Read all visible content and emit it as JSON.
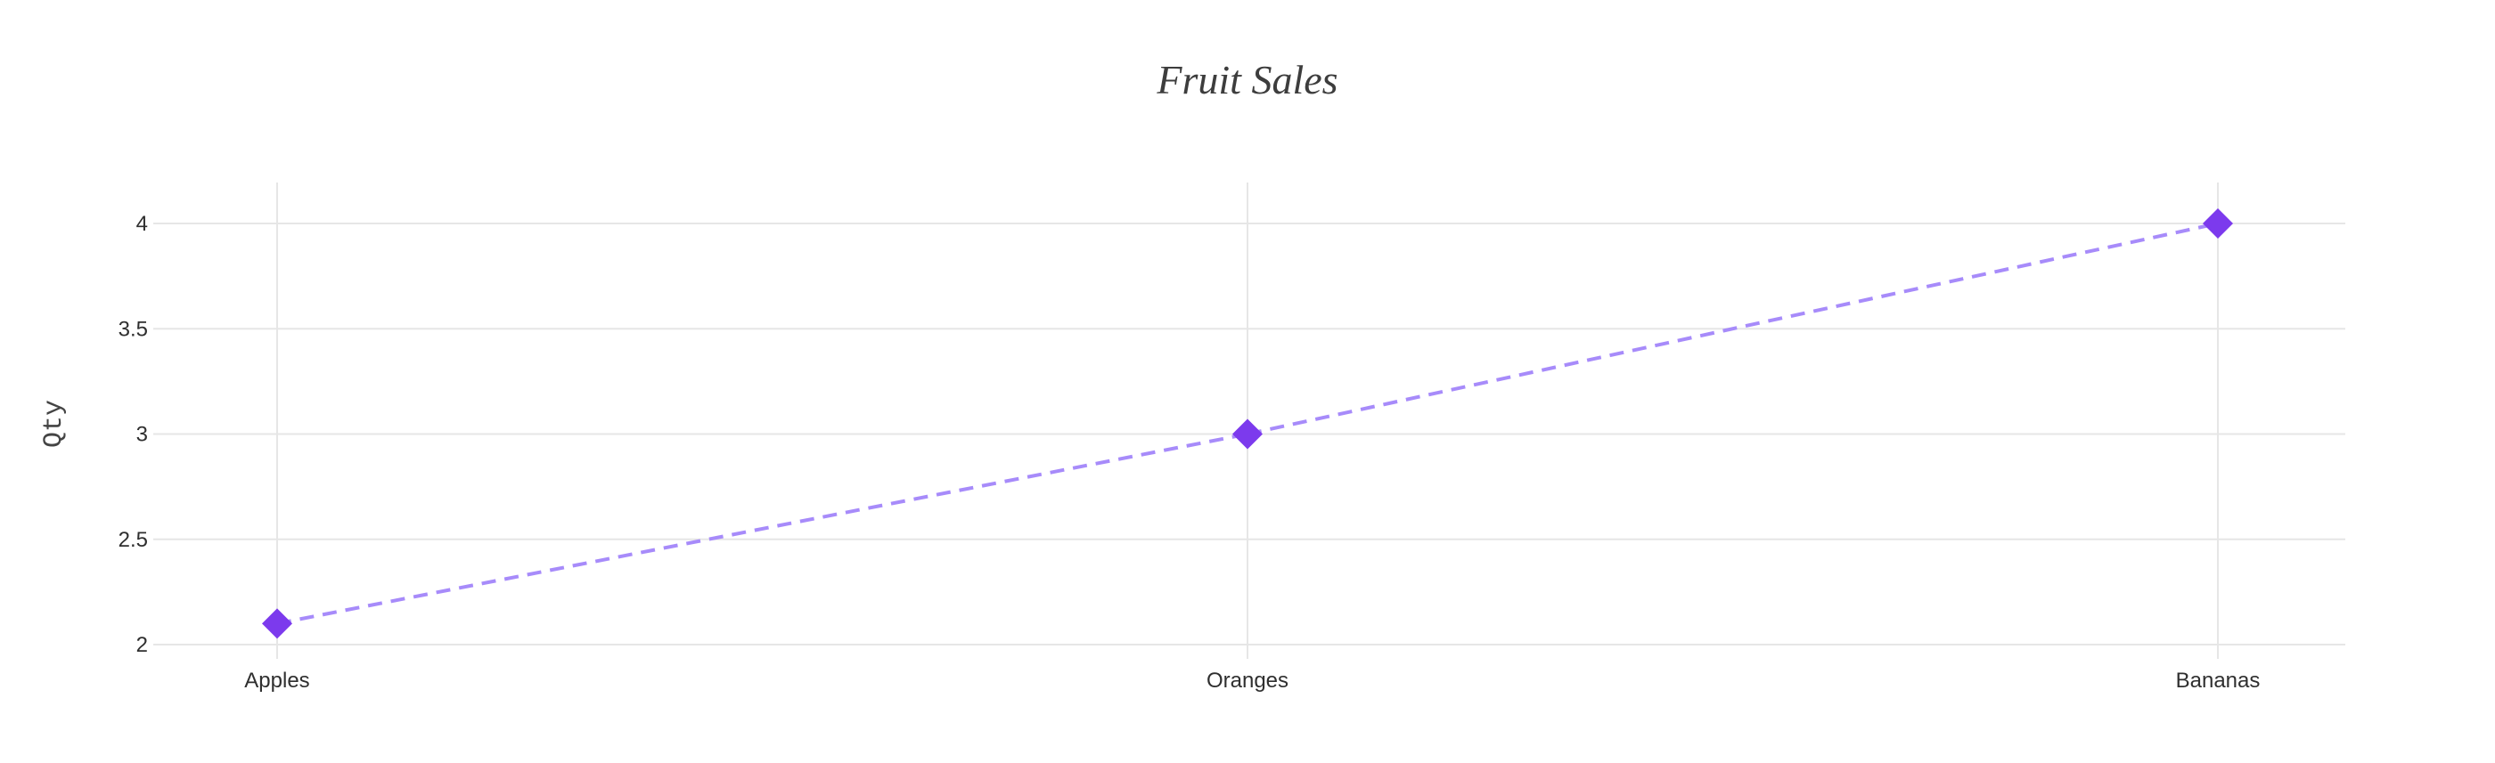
{
  "chart_data": {
    "type": "line",
    "title": "Fruit Sales",
    "xlabel": "",
    "ylabel": "Qty",
    "categories": [
      "Apples",
      "Oranges",
      "Bananas"
    ],
    "series": [
      {
        "values": [
          2.1,
          3,
          4
        ],
        "color": "#7c3aed",
        "line_color": "#a78bfa",
        "line_style": "dashed",
        "marker": "diamond"
      }
    ],
    "ylim": [
      2,
      4.2
    ],
    "y_ticks": [
      2,
      2.5,
      3,
      3.5,
      4
    ],
    "y_tick_labels": [
      "2",
      "2.5",
      "3",
      "3.5",
      "4"
    ],
    "grid": true,
    "legend": "none"
  }
}
